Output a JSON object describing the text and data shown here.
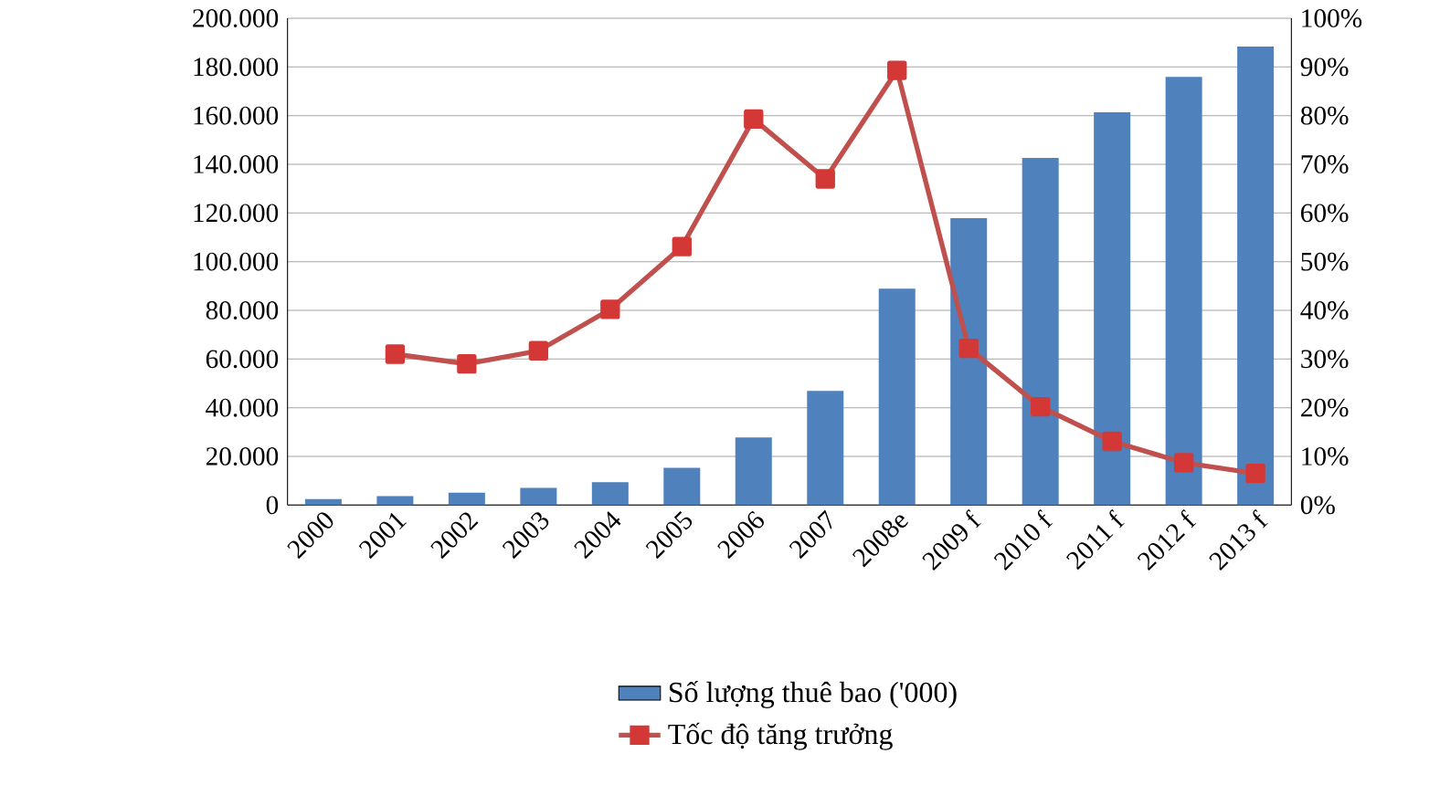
{
  "chart_data": {
    "type": "bar",
    "categories": [
      "2000",
      "2001",
      "2002",
      "2003",
      "2004",
      "2005",
      "2006",
      "2007",
      "2008e",
      "2009 f",
      "2010 f",
      "2011 f",
      "2012 f",
      "2013 f"
    ],
    "series": [
      {
        "name": "Số lượng thuê bao ('000)",
        "color": "#4f81bd",
        "values": [
          2500,
          3700,
          5100,
          7100,
          9400,
          15300,
          27800,
          46900,
          88900,
          117900,
          142600,
          161400,
          175900,
          188400
        ]
      },
      {
        "name": "Tốc độ tăng trưởng",
        "type": "line",
        "axis": "y2",
        "color": "#c0504d",
        "marker": "square",
        "values": [
          null,
          31.0,
          29.0,
          31.7,
          40.2,
          53.1,
          79.3,
          67.0,
          89.3,
          32.2,
          20.2,
          13.1,
          8.7,
          6.5
        ]
      }
    ],
    "ylim": [
      0,
      200000
    ],
    "yticks": [
      {
        "value": 0,
        "label": "0"
      },
      {
        "value": 20000,
        "label": "20.000"
      },
      {
        "value": 40000,
        "label": "40.000"
      },
      {
        "value": 60000,
        "label": "60.000"
      },
      {
        "value": 80000,
        "label": "80.000"
      },
      {
        "value": 100000,
        "label": "100.000"
      },
      {
        "value": 120000,
        "label": "120.000"
      },
      {
        "value": 140000,
        "label": "140.000"
      },
      {
        "value": 160000,
        "label": "160.000"
      },
      {
        "value": 180000,
        "label": "180.000"
      },
      {
        "value": 200000,
        "label": "200.000"
      }
    ],
    "y2lim": [
      0,
      100
    ],
    "y2ticks": [
      {
        "value": 0,
        "label": "0%"
      },
      {
        "value": 10,
        "label": "10%"
      },
      {
        "value": 20,
        "label": "20%"
      },
      {
        "value": 30,
        "label": "30%"
      },
      {
        "value": 40,
        "label": "40%"
      },
      {
        "value": 50,
        "label": "50%"
      },
      {
        "value": 60,
        "label": "60%"
      },
      {
        "value": 70,
        "label": "70%"
      },
      {
        "value": 80,
        "label": "80%"
      },
      {
        "value": 90,
        "label": "90%"
      },
      {
        "value": 100,
        "label": "100%"
      }
    ],
    "grid": "y",
    "legend": "bottom"
  }
}
